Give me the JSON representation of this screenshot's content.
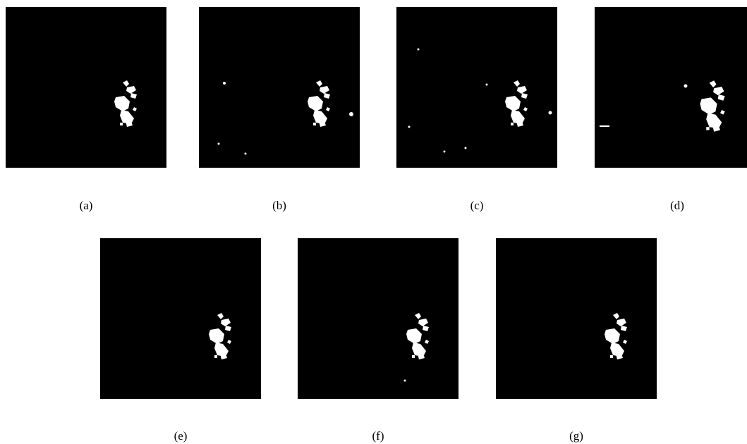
{
  "panels": [
    {
      "caption": "(a)"
    },
    {
      "caption": "(b)"
    },
    {
      "caption": "(c)"
    },
    {
      "caption": "(d)"
    },
    {
      "caption": "(e)"
    },
    {
      "caption": "(f)"
    },
    {
      "caption": "(g)"
    }
  ]
}
